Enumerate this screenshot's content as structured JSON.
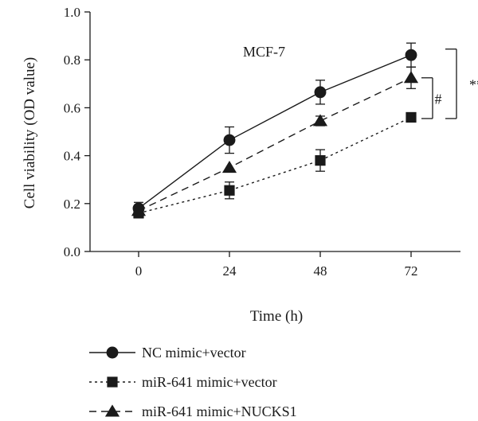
{
  "chart_data": {
    "type": "line",
    "title": "",
    "annotation": "MCF-7",
    "xlabel": "Time (h)",
    "ylabel": "Cell viability (OD value)",
    "x": [
      0,
      24,
      48,
      72
    ],
    "x_tick_labels": [
      "0",
      "24",
      "48",
      "72"
    ],
    "ylim": [
      0.0,
      1.0
    ],
    "y_tick_labels": [
      "0.0",
      "0.2",
      "0.4",
      "0.6",
      "0.8",
      "1.0"
    ],
    "grid": false,
    "legend_position": "bottom",
    "series": [
      {
        "name": "NC mimic+vector",
        "marker": "circle",
        "line_style": "solid",
        "values": [
          0.18,
          0.465,
          0.665,
          0.82
        ],
        "errors": [
          0.025,
          0.055,
          0.05,
          0.05
        ],
        "color": "#1a1a1a"
      },
      {
        "name": "miR-641 mimic+vector",
        "marker": "square",
        "line_style": "dotted",
        "values": [
          0.16,
          0.255,
          0.38,
          0.56
        ],
        "errors": [
          0.02,
          0.035,
          0.045,
          0.015
        ],
        "color": "#1a1a1a"
      },
      {
        "name": "miR-641 mimic+NUCKS1",
        "marker": "triangle",
        "line_style": "dashed",
        "values": [
          0.17,
          0.35,
          0.545,
          0.725
        ],
        "errors": [
          0.0,
          0.0,
          0.02,
          0.045
        ],
        "color": "#1a1a1a"
      }
    ],
    "significance": [
      {
        "label": "#",
        "from_value": 0.725,
        "to_value": 0.555
      },
      {
        "label": "**",
        "from_value": 0.845,
        "to_value": 0.555
      }
    ]
  }
}
